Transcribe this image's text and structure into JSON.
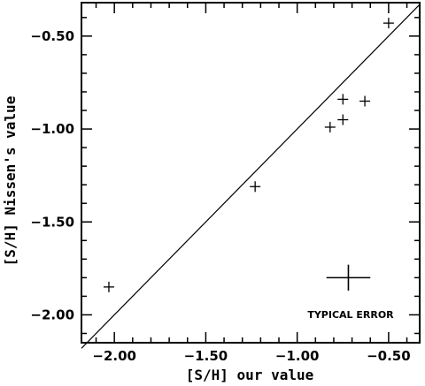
{
  "chart_data": {
    "type": "scatter",
    "xlabel": "[S/H] our value",
    "ylabel": "[S/H] Nissen's value",
    "xlim": [
      -2.18,
      -0.33
    ],
    "ylim": [
      -2.15,
      -0.32
    ],
    "x_ticks": [
      -2.0,
      -1.5,
      -1.0,
      -0.5
    ],
    "x_tick_labels": [
      "−2.00",
      "−1.50",
      "−1.00",
      "−0.50"
    ],
    "y_ticks": [
      -2.0,
      -1.5,
      -1.0,
      -0.5
    ],
    "y_tick_labels": [
      "−2.00",
      "−1.50",
      "−1.00",
      "−0.50"
    ],
    "grid": false,
    "marker": "plus",
    "series": [
      {
        "points": [
          {
            "x": -2.03,
            "y": -1.85
          },
          {
            "x": -1.23,
            "y": -1.31
          },
          {
            "x": -0.82,
            "y": -0.99
          },
          {
            "x": -0.75,
            "y": -0.84
          },
          {
            "x": -0.75,
            "y": -0.95
          },
          {
            "x": -0.63,
            "y": -0.85
          },
          {
            "x": -0.5,
            "y": -0.43
          }
        ]
      }
    ],
    "reference_line": {
      "type": "identity",
      "from": -2.18,
      "to": -0.33
    },
    "error_bar": {
      "label": "TYPICAL ERROR",
      "x": -0.72,
      "y": -1.8,
      "xerr": 0.12,
      "yerr": 0.07
    }
  }
}
